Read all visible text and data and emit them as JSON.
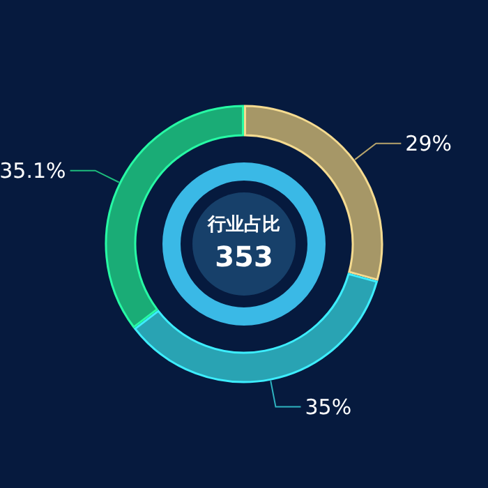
{
  "chart_data": {
    "type": "donut",
    "title": "行业占比",
    "subtitle": "353",
    "categories": [
      null,
      null,
      null
    ],
    "values": [
      29,
      35,
      35.1
    ],
    "value_labels": [
      "29%",
      "35%",
      "35.1%"
    ],
    "colors": [
      "#b8a56c",
      "#2eb3c0",
      "#1dbd7c"
    ]
  }
}
